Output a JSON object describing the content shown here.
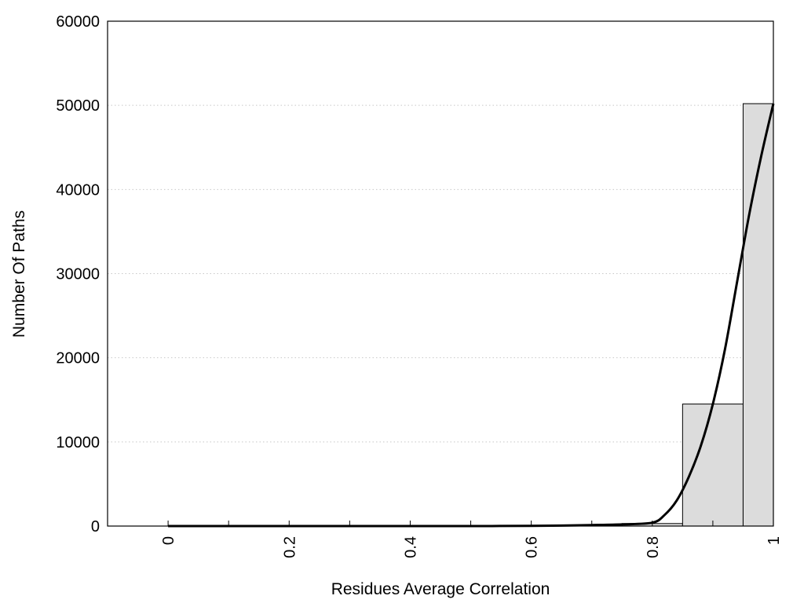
{
  "chart_data": {
    "type": "bar",
    "title": "",
    "xlabel": "Residues Average Correlation",
    "ylabel": "Number Of Paths",
    "xlim": [
      -0.1,
      1.0
    ],
    "ylim": [
      0,
      60000
    ],
    "grid": true,
    "x_ticks": [
      "0",
      "0.2",
      "0.4",
      "0.6",
      "0.8",
      "1"
    ],
    "y_ticks": [
      "0",
      "10000",
      "20000",
      "30000",
      "40000",
      "50000",
      "60000"
    ],
    "bars": [
      {
        "x0": 0.75,
        "x1": 0.85,
        "value": 300
      },
      {
        "x0": 0.85,
        "x1": 0.95,
        "value": 14500
      },
      {
        "x0": 0.95,
        "x1": 1.0,
        "value": 50200
      }
    ],
    "curve": {
      "type": "line",
      "x": [
        0,
        0.1,
        0.2,
        0.3,
        0.4,
        0.5,
        0.6,
        0.65,
        0.7,
        0.75,
        0.8,
        0.82,
        0.84,
        0.86,
        0.88,
        0.9,
        0.92,
        0.94,
        0.96,
        0.98,
        1.0
      ],
      "y": [
        0,
        0,
        0,
        0,
        0,
        0,
        20,
        60,
        120,
        200,
        400,
        1300,
        3000,
        5800,
        9500,
        14500,
        21000,
        29000,
        37000,
        44000,
        50200
      ]
    },
    "colors": {
      "bar_fill": "#dcdcdc",
      "bar_stroke": "#000000",
      "curve": "#000000",
      "grid": "#c8c8c8"
    }
  }
}
